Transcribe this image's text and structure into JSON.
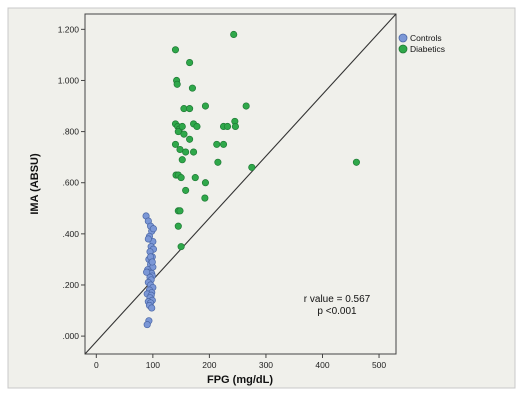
{
  "chart_data": {
    "type": "scatter",
    "xlabel": "FPG (mg/dL)",
    "ylabel": "IMA (ABSU)",
    "xlim": [
      -20,
      530
    ],
    "ylim": [
      -0.07,
      1.26
    ],
    "x_ticks": [
      0,
      100,
      200,
      300,
      400,
      500
    ],
    "x_tick_labels": [
      "0",
      "100",
      "200",
      "300",
      "400",
      "500"
    ],
    "y_ticks": [
      0.0,
      0.2,
      0.4,
      0.6,
      0.8,
      1.0,
      1.2
    ],
    "y_tick_labels": [
      ".000",
      ".200",
      ".400",
      ".600",
      ".800",
      "1.000",
      "1.200"
    ],
    "grid": false,
    "legend_position": "outside-right-top",
    "colors": {
      "plot_bg": "#f0f0eb",
      "controls": "#7b97d6",
      "diabetics": "#2fa84a",
      "line": "#333333"
    },
    "reference_line": {
      "from": [
        -20,
        -0.07
      ],
      "to": [
        530,
        1.26
      ],
      "label": ""
    },
    "annotations": [
      "r value = 0.567",
      "p <0.001"
    ],
    "series": [
      {
        "name": "Controls",
        "color": "#7b97d6",
        "points": [
          [
            88,
            0.47
          ],
          [
            92,
            0.45
          ],
          [
            96,
            0.43
          ],
          [
            98,
            0.41
          ],
          [
            94,
            0.39
          ],
          [
            100,
            0.37
          ],
          [
            97,
            0.35
          ],
          [
            101,
            0.34
          ],
          [
            95,
            0.33
          ],
          [
            99,
            0.31
          ],
          [
            93,
            0.3
          ],
          [
            98,
            0.29
          ],
          [
            96,
            0.28
          ],
          [
            100,
            0.27
          ],
          [
            91,
            0.26
          ],
          [
            94,
            0.25
          ],
          [
            98,
            0.245
          ],
          [
            99,
            0.235
          ],
          [
            95,
            0.23
          ],
          [
            97,
            0.22
          ],
          [
            92,
            0.21
          ],
          [
            96,
            0.2
          ],
          [
            100,
            0.19
          ],
          [
            94,
            0.18
          ],
          [
            98,
            0.17
          ],
          [
            90,
            0.165
          ],
          [
            97,
            0.16
          ],
          [
            95,
            0.15
          ],
          [
            99,
            0.14
          ],
          [
            92,
            0.135
          ],
          [
            96,
            0.13
          ],
          [
            94,
            0.12
          ],
          [
            93,
            0.06
          ],
          [
            90,
            0.045
          ],
          [
            98,
            0.11
          ],
          [
            89,
            0.25
          ],
          [
            101,
            0.42
          ],
          [
            96,
            0.31
          ],
          [
            92,
            0.38
          ],
          [
            99,
            0.29
          ]
        ]
      },
      {
        "name": "Diabetics",
        "color": "#2fa84a",
        "points": [
          [
            140,
            1.12
          ],
          [
            243,
            1.18
          ],
          [
            165,
            1.07
          ],
          [
            142,
            1.0
          ],
          [
            143,
            0.985
          ],
          [
            170,
            0.97
          ],
          [
            155,
            0.89
          ],
          [
            165,
            0.89
          ],
          [
            193,
            0.9
          ],
          [
            265,
            0.9
          ],
          [
            245,
            0.84
          ],
          [
            246,
            0.82
          ],
          [
            140,
            0.83
          ],
          [
            144,
            0.82
          ],
          [
            147,
            0.81
          ],
          [
            152,
            0.82
          ],
          [
            172,
            0.83
          ],
          [
            178,
            0.82
          ],
          [
            225,
            0.82
          ],
          [
            232,
            0.82
          ],
          [
            145,
            0.8
          ],
          [
            155,
            0.79
          ],
          [
            165,
            0.77
          ],
          [
            213,
            0.75
          ],
          [
            225,
            0.75
          ],
          [
            140,
            0.75
          ],
          [
            148,
            0.73
          ],
          [
            158,
            0.72
          ],
          [
            172,
            0.72
          ],
          [
            152,
            0.69
          ],
          [
            215,
            0.68
          ],
          [
            275,
            0.66
          ],
          [
            460,
            0.68
          ],
          [
            141,
            0.63
          ],
          [
            145,
            0.63
          ],
          [
            150,
            0.62
          ],
          [
            175,
            0.62
          ],
          [
            193,
            0.6
          ],
          [
            158,
            0.57
          ],
          [
            192,
            0.54
          ],
          [
            145,
            0.49
          ],
          [
            148,
            0.49
          ],
          [
            145,
            0.43
          ],
          [
            150,
            0.35
          ]
        ]
      }
    ]
  }
}
